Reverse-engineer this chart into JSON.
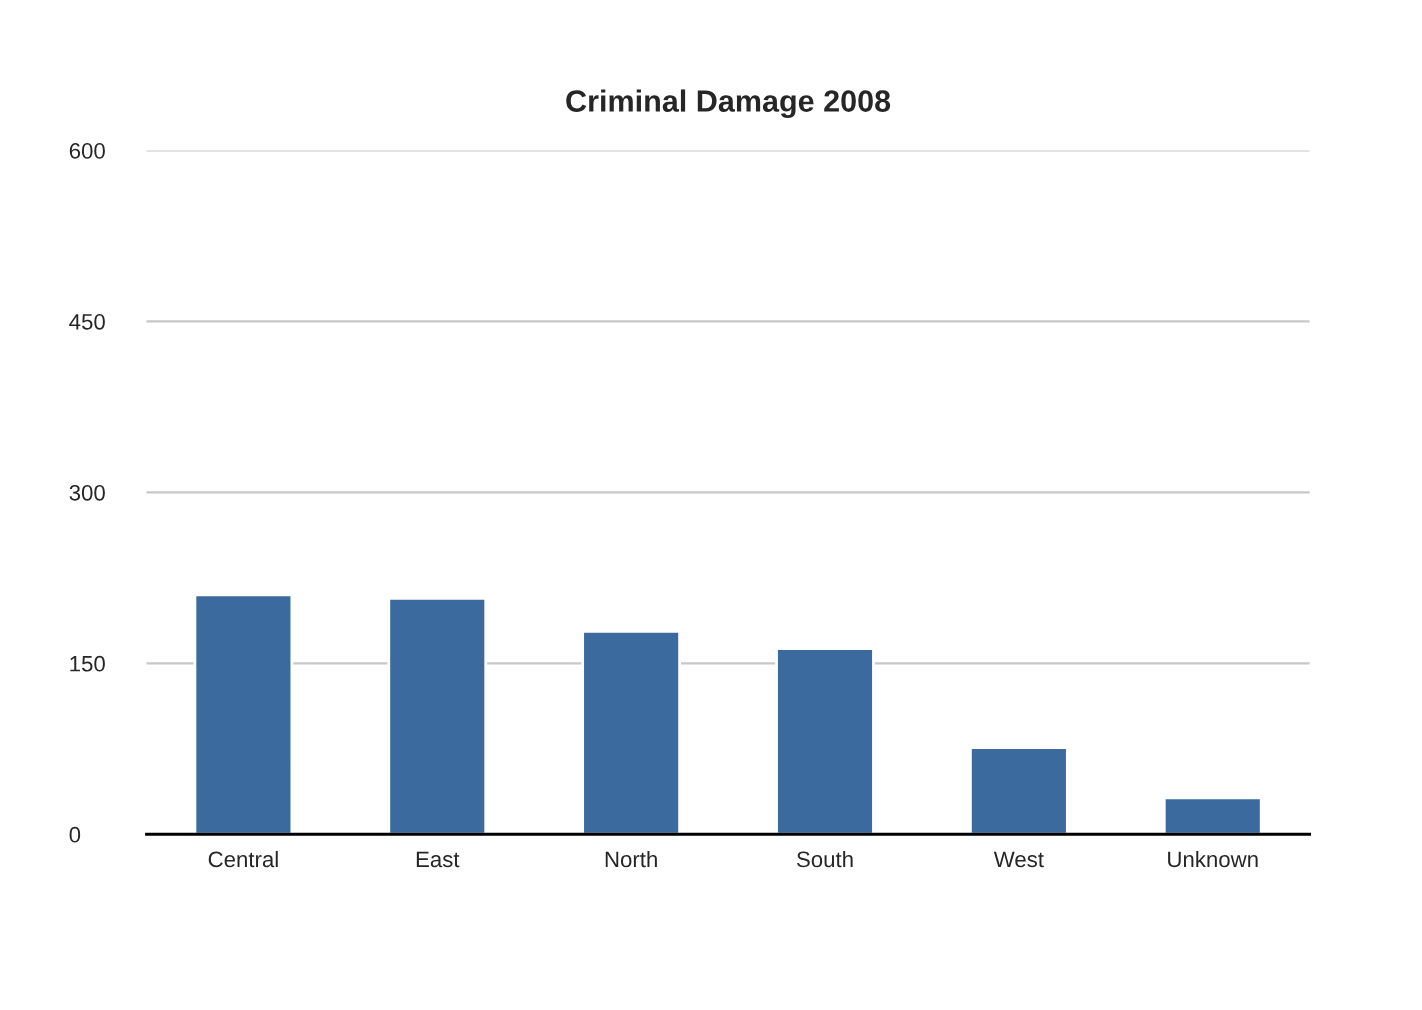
{
  "chart_data": {
    "type": "bar",
    "title": "Criminal Damage 2008",
    "categories": [
      "Central",
      "East",
      "North",
      "South",
      "West",
      "Unknown"
    ],
    "values": [
      210,
      207,
      178,
      163,
      76,
      32
    ],
    "color": "#3b6a9e",
    "ylim": [
      0,
      600
    ],
    "yticks": [
      0,
      150,
      300,
      450,
      600
    ],
    "grid": "y",
    "legend": false
  }
}
